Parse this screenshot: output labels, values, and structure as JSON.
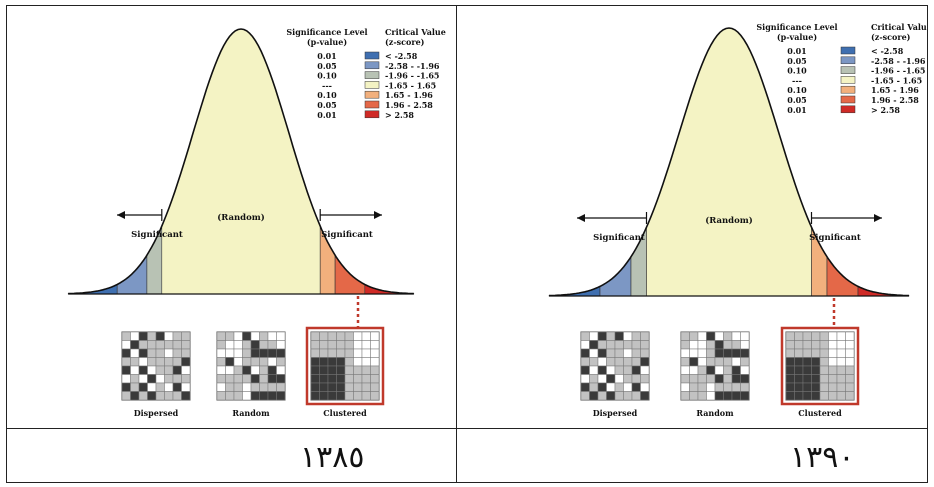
{
  "panels": [
    {
      "id": "left",
      "year": "١٣٨٥",
      "legend": {
        "sig_header": "Significance Level",
        "sig_sub": "(p-value)",
        "crit_header": "Critical Value",
        "crit_sub": "(z-score)",
        "rows": [
          {
            "p": "0.01",
            "z": "< -2.58",
            "color": "#3f6fb0"
          },
          {
            "p": "0.05",
            "z": "-2.58 - -1.96",
            "color": "#7c97c4"
          },
          {
            "p": "0.10",
            "z": "-1.96 - -1.65",
            "color": "#b8c2b4"
          },
          {
            "p": "---",
            "z": "-1.65 - 1.65",
            "color": "#f4f3c4"
          },
          {
            "p": "0.10",
            "z": "1.65 - 1.96",
            "color": "#f2b07d"
          },
          {
            "p": "0.05",
            "z": "1.96 - 2.58",
            "color": "#e46848"
          },
          {
            "p": "0.01",
            "z": "> 2.58",
            "color": "#cf2a26"
          }
        ]
      },
      "labels": {
        "random": "(Random)",
        "sig_left": "Significant",
        "sig_right": "Significant"
      },
      "patterns": {
        "dispersed": "Dispersed",
        "random": "Random",
        "clustered": "Clustered"
      }
    },
    {
      "id": "right",
      "year": "١٣٩٠",
      "legend": {
        "sig_header": "Significance Level",
        "sig_sub": "(p-value)",
        "crit_header": "Critical Value",
        "crit_sub": "(z-score)",
        "rows": [
          {
            "p": "0.01",
            "z": "< -2.58",
            "color": "#3f6fb0"
          },
          {
            "p": "0.05",
            "z": "-2.58 - -1.96",
            "color": "#7c97c4"
          },
          {
            "p": "0.10",
            "z": "-1.96 - -1.65",
            "color": "#b8c2b4"
          },
          {
            "p": "---",
            "z": "-1.65 - 1.65",
            "color": "#f4f3c4"
          },
          {
            "p": "0.10",
            "z": "1.65 - 1.96",
            "color": "#f2b07d"
          },
          {
            "p": "0.05",
            "z": "1.96 - 2.58",
            "color": "#e46848"
          },
          {
            "p": "0.01",
            "z": "> 2.58",
            "color": "#cf2a26"
          }
        ]
      },
      "labels": {
        "random": "(Random)",
        "sig_left": "Significant",
        "sig_right": "Significant"
      },
      "patterns": {
        "dispersed": "Dispersed",
        "random": "Random",
        "clustered": "Clustered"
      }
    }
  ]
}
